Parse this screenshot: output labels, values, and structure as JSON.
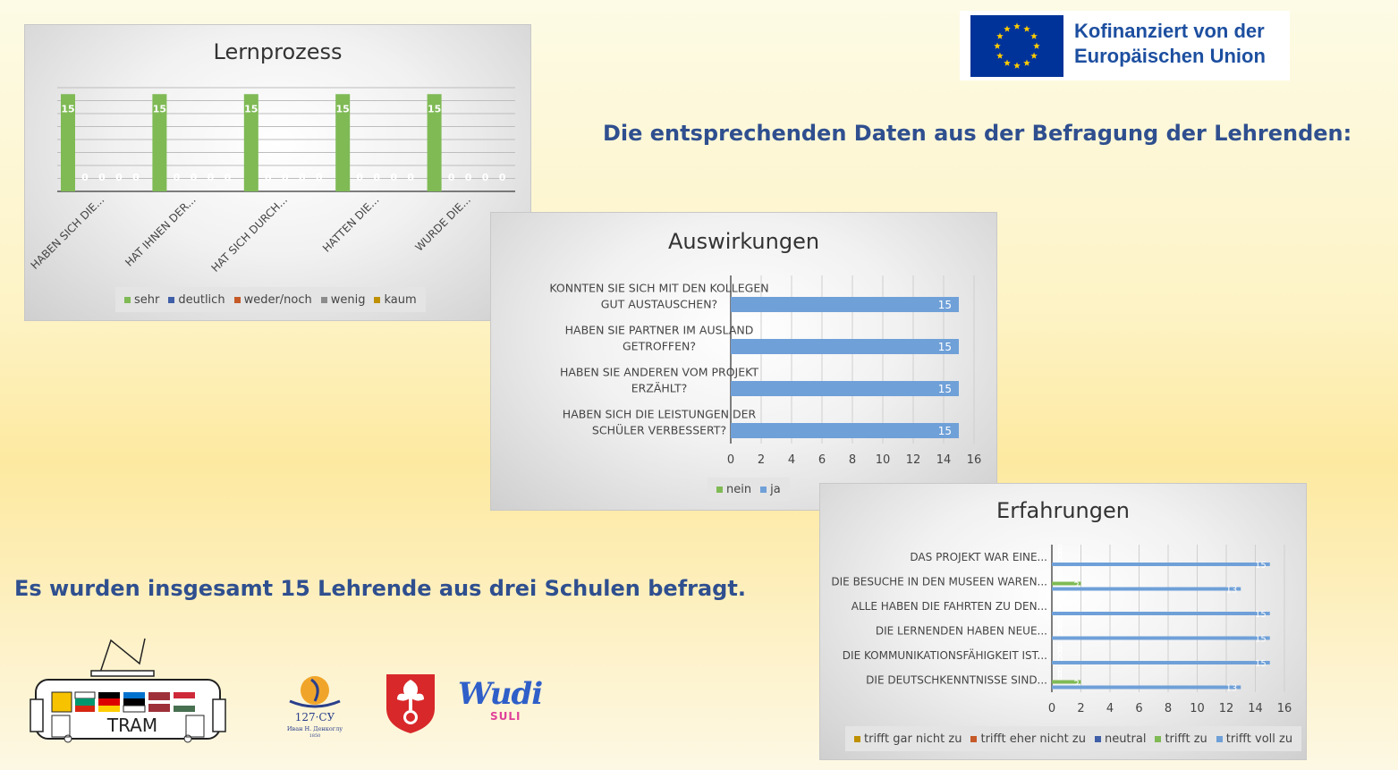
{
  "eu_logo": {
    "line1": "Kofinanziert von der",
    "line2": "Europäischen Union"
  },
  "heading_right": "Die entsprechenden Daten aus der Befragung der Lehrenden:",
  "heading_left": "Es wurden insgesamt 15 Lehrende aus drei Schulen befragt.",
  "logos": {
    "tram": "TRAM",
    "school_line1": "127·СУ",
    "school_line2": "Иван Н. Денкоглу",
    "school_year": "1850",
    "wudi": "Wudi",
    "suli": "SULI"
  },
  "chart_data": [
    {
      "type": "bar",
      "title": "Lernprozess",
      "categories": [
        "HABEN SICH DIE...",
        "HAT IHNEN DER...",
        "HAT SICH DURCH...",
        "HATTEN DIE...",
        "WURDE DIE..."
      ],
      "series": [
        {
          "name": "sehr",
          "color": "#7fba55",
          "values": [
            15,
            15,
            15,
            15,
            15
          ]
        },
        {
          "name": "deutlich",
          "color": "#3f5fa8",
          "values": [
            0,
            0,
            0,
            0,
            0
          ]
        },
        {
          "name": "weder/noch",
          "color": "#c55a28",
          "values": [
            0,
            0,
            0,
            0,
            0
          ]
        },
        {
          "name": "wenig",
          "color": "#8c8c8c",
          "values": [
            0,
            0,
            0,
            0,
            0
          ]
        },
        {
          "name": "kaum",
          "color": "#bf9000",
          "values": [
            0,
            0,
            0,
            0,
            0
          ]
        }
      ],
      "ylim": [
        0,
        16
      ],
      "grid": true,
      "legend": "bottom"
    },
    {
      "type": "bar",
      "orientation": "horizontal",
      "title": "Auswirkungen",
      "categories": [
        [
          "KONNTEN SIE SICH MIT DEN KOLLEGEN",
          "GUT AUSTAUSCHEN?"
        ],
        [
          "HABEN SIE PARTNER IM AUSLAND",
          "GETROFFEN?"
        ],
        [
          "HABEN SIE ANDEREN VOM PROJEKT",
          "ERZÄHLT?"
        ],
        [
          "HABEN SICH DIE LEISTUNGEN DER",
          "SCHÜLER VERBESSERT?"
        ]
      ],
      "series": [
        {
          "name": "nein",
          "color": "#7fba55",
          "values": [
            0,
            0,
            0,
            0
          ]
        },
        {
          "name": "ja",
          "color": "#6fa0d8",
          "values": [
            15,
            15,
            15,
            15
          ]
        }
      ],
      "xlim": [
        0,
        16
      ],
      "ticks": [
        "0",
        "2",
        "4",
        "6",
        "8",
        "10",
        "12",
        "14",
        "16"
      ],
      "grid": true,
      "legend": "bottom"
    },
    {
      "type": "bar",
      "orientation": "horizontal",
      "title": "Erfahrungen",
      "categories": [
        "DAS PROJEKT WAR EINE...",
        "DIE BESUCHE IN DEN MUSEEN WAREN...",
        "ALLE HABEN DIE FAHRTEN ZU DEN...",
        "DIE LERNENDEN HABEN NEUE...",
        "DIE KOMMUNIKATIONSFÄHIGKEIT IST...",
        "DIE DEUTSCHKENNTNISSE SIND..."
      ],
      "series": [
        {
          "name": "trifft gar nicht zu",
          "color": "#bf9000",
          "values": [
            0,
            0,
            0,
            0,
            0,
            0
          ]
        },
        {
          "name": "trifft eher nicht zu",
          "color": "#c55a28",
          "values": [
            0,
            0,
            0,
            0,
            0,
            0
          ]
        },
        {
          "name": "neutral",
          "color": "#3f5fa8",
          "values": [
            0,
            0,
            0,
            0,
            0,
            0
          ]
        },
        {
          "name": "trifft zu",
          "color": "#7fba55",
          "values": [
            0,
            2,
            0,
            0,
            0,
            2
          ]
        },
        {
          "name": "trifft voll zu",
          "color": "#6fa0d8",
          "values": [
            15,
            13,
            15,
            15,
            15,
            13
          ]
        }
      ],
      "xlim": [
        0,
        16
      ],
      "ticks": [
        "0",
        "2",
        "4",
        "6",
        "8",
        "10",
        "12",
        "14",
        "16"
      ],
      "grid": true,
      "legend": "bottom"
    }
  ]
}
